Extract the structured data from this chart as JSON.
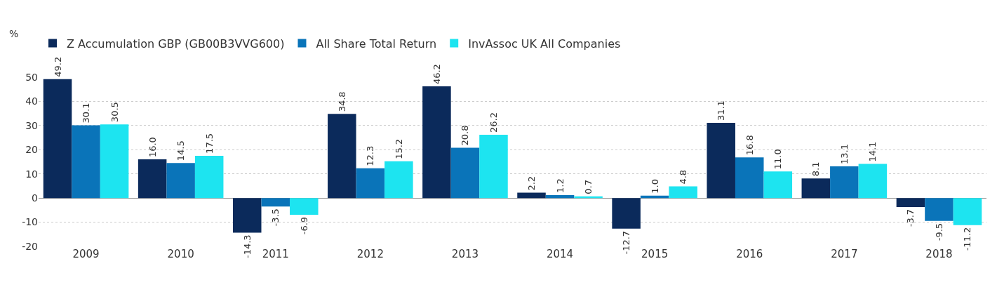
{
  "chart_data": {
    "type": "bar",
    "ylabel": "%",
    "categories": [
      "2009",
      "2010",
      "2011",
      "2012",
      "2013",
      "2014",
      "2015",
      "2016",
      "2017",
      "2018"
    ],
    "series": [
      {
        "name": "Z Accumulation GBP (GB00B3VVG600)",
        "color": "#0b2a5b",
        "values": [
          49.2,
          16.0,
          -14.3,
          34.8,
          46.2,
          2.2,
          -12.7,
          31.1,
          8.1,
          -3.7
        ]
      },
      {
        "name": "All Share Total Return",
        "color": "#0a74b9",
        "values": [
          30.1,
          14.5,
          -3.5,
          12.3,
          20.8,
          1.2,
          1.0,
          16.8,
          13.1,
          -9.5
        ]
      },
      {
        "name": "InvAssoc UK All Companies",
        "color": "#1de4f0",
        "values": [
          30.5,
          17.5,
          -6.9,
          15.2,
          26.2,
          0.7,
          4.8,
          11.0,
          14.1,
          -11.2
        ]
      }
    ],
    "value_labels": [
      [
        "49.2",
        "16.0",
        "-14.3",
        "34.8",
        "46.2",
        "2.2",
        "-12.7",
        "31.1",
        "8.1",
        "-3.7"
      ],
      [
        "30.1",
        "14.5",
        "-3.5",
        "12.3",
        "20.8",
        "1.2",
        "1.0",
        "16.8",
        "13.1",
        "-9.5"
      ],
      [
        "30.5",
        "17.5",
        "-6.9",
        "15.2",
        "26.2",
        "0.7",
        "4.8",
        "11.0",
        "14.1",
        "-11.2"
      ]
    ],
    "ylim": [
      -20,
      50
    ],
    "yticks": [
      -20,
      -10,
      0,
      10,
      20,
      30,
      40,
      50
    ],
    "grid": "y",
    "legend": "top left"
  }
}
